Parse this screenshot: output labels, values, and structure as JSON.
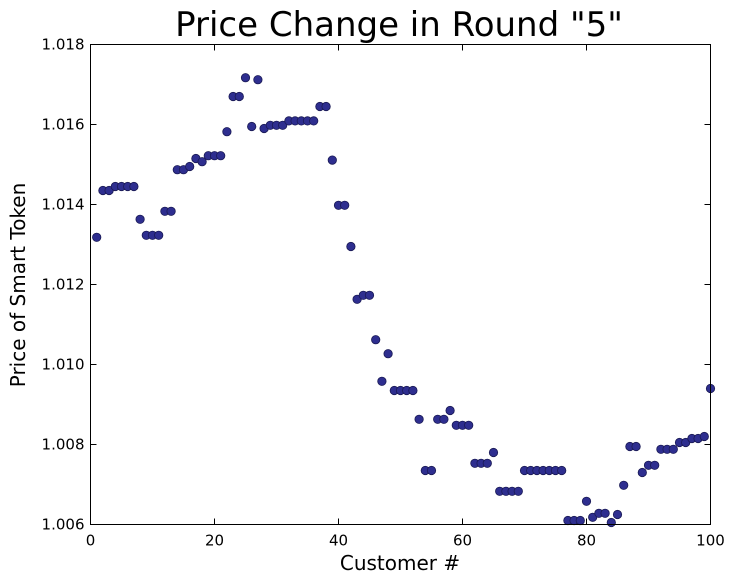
{
  "chart_data": {
    "type": "scatter",
    "title": "Price Change in Round \"5\"",
    "xlabel": "Customer #",
    "ylabel": "Price of Smart Token",
    "xlim": [
      0,
      100
    ],
    "ylim": [
      1.006,
      1.018
    ],
    "xticks": [
      "0",
      "20",
      "40",
      "60",
      "80",
      "100"
    ],
    "yticks": [
      "1.006",
      "1.008",
      "1.010",
      "1.012",
      "1.014",
      "1.016",
      "1.018"
    ],
    "grid": false,
    "marker_color": "#2e2e8f",
    "series": [
      {
        "x": [
          1,
          2,
          3,
          4,
          5,
          6,
          7,
          8,
          9,
          10,
          11,
          12,
          13,
          14,
          15,
          16,
          17,
          18,
          19,
          20,
          21,
          22,
          23,
          24,
          25,
          26,
          27,
          28,
          29,
          30,
          31,
          32,
          33,
          34,
          35,
          36,
          37,
          38,
          39,
          40,
          41,
          42,
          43,
          44,
          45,
          46,
          47,
          48,
          49,
          50,
          51,
          52,
          53,
          54,
          55,
          56,
          57,
          58,
          59,
          60,
          61,
          62,
          63,
          64,
          65,
          66,
          67,
          68,
          69,
          70,
          71,
          72,
          73,
          74,
          75,
          76,
          77,
          78,
          79,
          80,
          81,
          82,
          83,
          84,
          85,
          86,
          87,
          88,
          89,
          90,
          91,
          92,
          93,
          94,
          95,
          96,
          97,
          98,
          99,
          100
        ],
        "y": [
          1.01318,
          1.01435,
          1.01435,
          1.01445,
          1.01445,
          1.01445,
          1.01445,
          1.01363,
          1.01323,
          1.01323,
          1.01323,
          1.01383,
          1.01383,
          1.01487,
          1.01487,
          1.01495,
          1.01515,
          1.01507,
          1.01522,
          1.01522,
          1.01522,
          1.01582,
          1.0167,
          1.0167,
          1.01717,
          1.01595,
          1.01712,
          1.0159,
          1.01598,
          1.01598,
          1.01598,
          1.01609,
          1.01609,
          1.01609,
          1.01609,
          1.01609,
          1.01645,
          1.01645,
          1.01511,
          1.01398,
          1.01398,
          1.01295,
          1.01163,
          1.01173,
          1.01173,
          1.01062,
          1.00958,
          1.01027,
          1.00935,
          1.00935,
          1.00935,
          1.00935,
          1.00863,
          1.00735,
          1.00735,
          1.00863,
          1.00863,
          1.00885,
          1.00848,
          1.00848,
          1.00848,
          1.00753,
          1.00753,
          1.00753,
          1.0078,
          1.00683,
          1.00683,
          1.00683,
          1.00683,
          1.00735,
          1.00735,
          1.00735,
          1.00735,
          1.00735,
          1.00735,
          1.00735,
          1.0061,
          1.0061,
          1.0061,
          1.00658,
          1.00618,
          1.00628,
          1.00628,
          1.00605,
          1.00625,
          1.00698,
          1.00795,
          1.00795,
          1.0073,
          1.00748,
          1.00748,
          1.00788,
          1.00788,
          1.00788,
          1.00805,
          1.00805,
          1.00815,
          1.00815,
          1.0082,
          1.0094
        ]
      }
    ]
  }
}
